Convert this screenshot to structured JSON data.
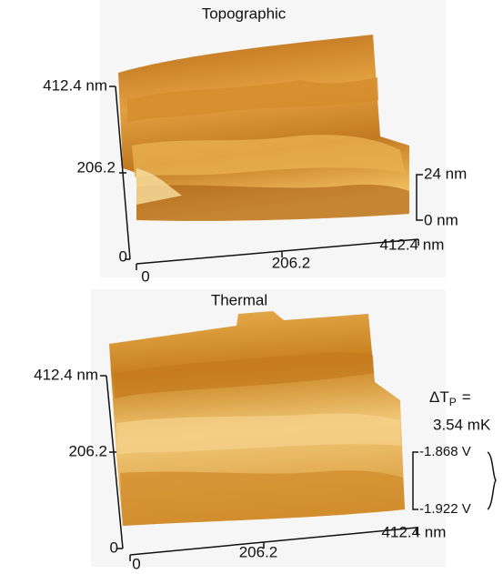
{
  "panels": [
    {
      "title": "Topographic",
      "y_axis": {
        "max": "412.4 nm",
        "mid": "206.2",
        "min": "0"
      },
      "x_axis": {
        "min": "0",
        "mid": "206.2",
        "max": "412.4 nm"
      },
      "z_scale": {
        "top": "24 nm",
        "bottom": "0 nm"
      }
    },
    {
      "title": "Thermal",
      "y_axis": {
        "max": "412.4 nm",
        "mid": "206.2",
        "min": "0"
      },
      "x_axis": {
        "min": "0",
        "mid": "206.2",
        "max": "412.4 nm"
      },
      "annotation": {
        "symbol": "ΔT",
        "subscript": "P",
        "equals": "=",
        "value": "3.54 mK"
      },
      "z_scale": {
        "top": "-1.868 V",
        "bottom": "-1.922 V"
      }
    }
  ]
}
